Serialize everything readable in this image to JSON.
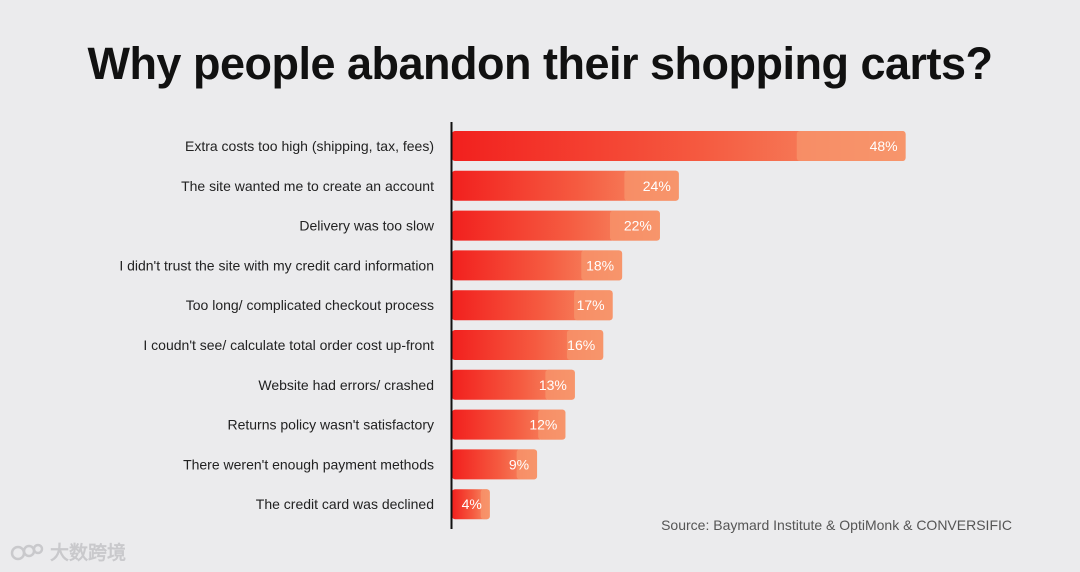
{
  "chart_data": {
    "type": "bar",
    "orientation": "horizontal",
    "title": "Why people abandon their shopping carts?",
    "categories": [
      "Extra costs too high (shipping, tax, fees)",
      "The site wanted me to create an account",
      "Delivery was too slow",
      "I didn't trust the site with my credit card information",
      "Too long/ complicated checkout process",
      "I coudn't see/ calculate total order cost up-front",
      "Website had errors/ crashed",
      "Returns policy wasn't satisfactory",
      "There weren't enough payment methods",
      "The credit card was declined"
    ],
    "values": [
      48,
      24,
      22,
      18,
      17,
      16,
      13,
      12,
      9,
      4
    ],
    "value_labels": [
      "48%",
      "24%",
      "22%",
      "18%",
      "17%",
      "16%",
      "13%",
      "12%",
      "9%",
      "4%"
    ],
    "unit": "%",
    "grid": false,
    "legend": "none",
    "colors": {
      "bar_start": "#f2201e",
      "bar_end": "#f8a070",
      "axis": "#111111"
    },
    "source": "Source: Baymard Institute & OptiMonk & CONVERSIFIC"
  },
  "watermark": {
    "text": "大数跨境",
    "icon": "logo-icon"
  }
}
